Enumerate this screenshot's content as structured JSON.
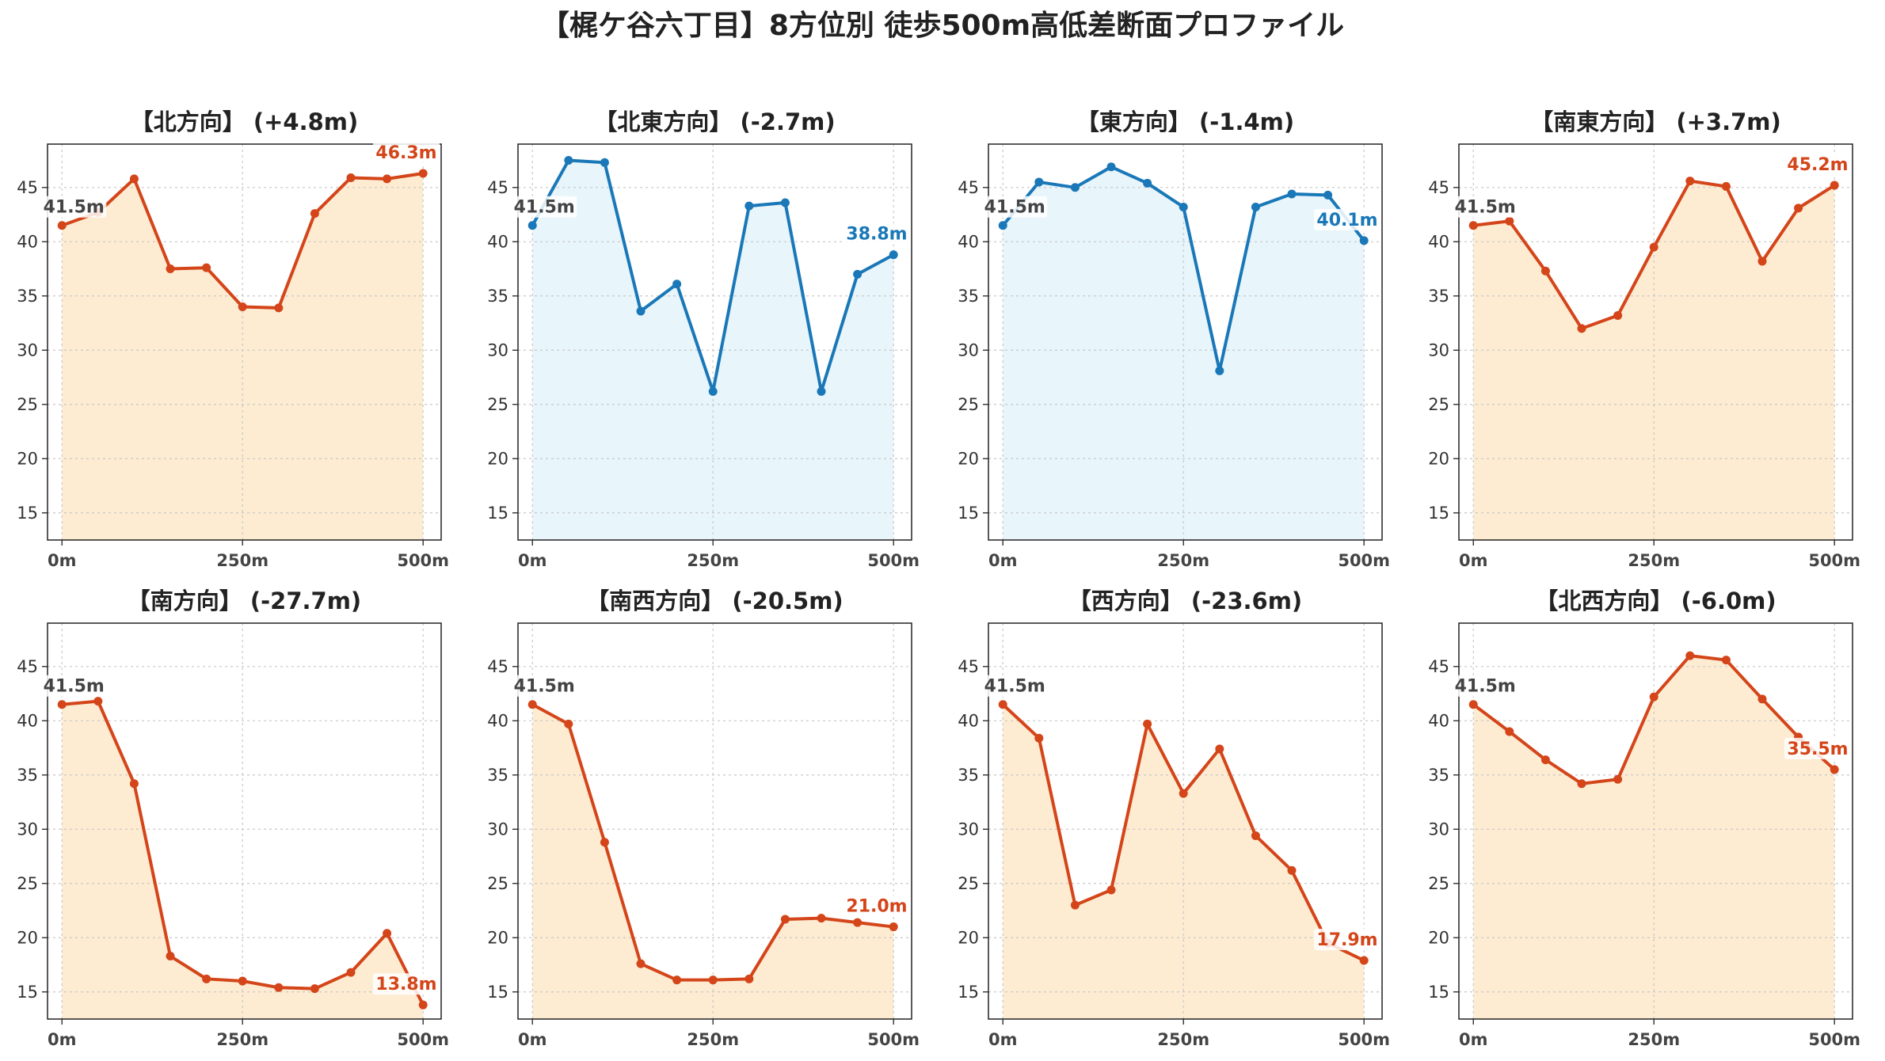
{
  "title": "【梶ケ谷六丁目】8方位別 徒歩500m高低差断面プロファイル",
  "colors": {
    "up_line": "#d4451a",
    "up_fill": "#fdecd2",
    "down_line": "#1a78b8",
    "down_fill": "#e8f5fb",
    "grid": "#c8c8c8",
    "label_gray": "#444444"
  },
  "chart_data": [
    {
      "type": "area",
      "title": "【北方向】 (+4.8m)",
      "color_scheme": "orange",
      "x": [
        0,
        50,
        100,
        150,
        200,
        250,
        300,
        350,
        400,
        450,
        500
      ],
      "values": [
        41.5,
        42.7,
        45.8,
        37.5,
        37.6,
        34.0,
        33.9,
        42.6,
        45.9,
        45.8,
        46.3
      ],
      "x_ticks": [
        "0m",
        "250m",
        "500m"
      ],
      "y_ticks": [
        15,
        20,
        25,
        30,
        35,
        40,
        45
      ],
      "ylim": [
        12.5,
        49
      ],
      "start_label": "41.5m",
      "end_label": "46.3m",
      "grid": true
    },
    {
      "type": "area",
      "title": "【北東方向】 (-2.7m)",
      "color_scheme": "blue",
      "x": [
        0,
        50,
        100,
        150,
        200,
        250,
        300,
        350,
        400,
        450,
        500
      ],
      "values": [
        41.5,
        47.5,
        47.3,
        33.6,
        36.1,
        26.2,
        43.3,
        43.6,
        26.2,
        37.0,
        38.8
      ],
      "x_ticks": [
        "0m",
        "250m",
        "500m"
      ],
      "y_ticks": [
        15,
        20,
        25,
        30,
        35,
        40,
        45
      ],
      "ylim": [
        12.5,
        49
      ],
      "start_label": "41.5m",
      "end_label": "38.8m",
      "grid": true
    },
    {
      "type": "area",
      "title": "【東方向】 (-1.4m)",
      "color_scheme": "blue",
      "x": [
        0,
        50,
        100,
        150,
        200,
        250,
        300,
        350,
        400,
        450,
        500
      ],
      "values": [
        41.5,
        45.5,
        45.0,
        46.9,
        45.4,
        43.2,
        28.1,
        43.2,
        44.4,
        44.3,
        40.1
      ],
      "x_ticks": [
        "0m",
        "250m",
        "500m"
      ],
      "y_ticks": [
        15,
        20,
        25,
        30,
        35,
        40,
        45
      ],
      "ylim": [
        12.5,
        49
      ],
      "start_label": "41.5m",
      "end_label": "40.1m",
      "grid": true
    },
    {
      "type": "area",
      "title": "【南東方向】 (+3.7m)",
      "color_scheme": "orange",
      "x": [
        0,
        50,
        100,
        150,
        200,
        250,
        300,
        350,
        400,
        450,
        500
      ],
      "values": [
        41.5,
        41.9,
        37.3,
        32.0,
        33.2,
        39.5,
        45.6,
        45.1,
        38.2,
        43.1,
        45.2
      ],
      "x_ticks": [
        "0m",
        "250m",
        "500m"
      ],
      "y_ticks": [
        15,
        20,
        25,
        30,
        35,
        40,
        45
      ],
      "ylim": [
        12.5,
        49
      ],
      "start_label": "41.5m",
      "end_label": "45.2m",
      "grid": true
    },
    {
      "type": "area",
      "title": "【南方向】 (-27.7m)",
      "color_scheme": "orange",
      "x": [
        0,
        50,
        100,
        150,
        200,
        250,
        300,
        350,
        400,
        450,
        500
      ],
      "values": [
        41.5,
        41.8,
        34.2,
        18.3,
        16.2,
        16.0,
        15.4,
        15.3,
        16.8,
        20.4,
        13.8
      ],
      "x_ticks": [
        "0m",
        "250m",
        "500m"
      ],
      "y_ticks": [
        15,
        20,
        25,
        30,
        35,
        40,
        45
      ],
      "ylim": [
        12.5,
        49
      ],
      "start_label": "41.5m",
      "end_label": "13.8m",
      "grid": true
    },
    {
      "type": "area",
      "title": "【南西方向】 (-20.5m)",
      "color_scheme": "orange",
      "x": [
        0,
        50,
        100,
        150,
        200,
        250,
        300,
        350,
        400,
        450,
        500
      ],
      "values": [
        41.5,
        39.7,
        28.8,
        17.6,
        16.1,
        16.1,
        16.2,
        21.7,
        21.8,
        21.4,
        21.0
      ],
      "x_ticks": [
        "0m",
        "250m",
        "500m"
      ],
      "y_ticks": [
        15,
        20,
        25,
        30,
        35,
        40,
        45
      ],
      "ylim": [
        12.5,
        49
      ],
      "start_label": "41.5m",
      "end_label": "21.0m",
      "grid": true
    },
    {
      "type": "area",
      "title": "【西方向】 (-23.6m)",
      "color_scheme": "orange",
      "x": [
        0,
        50,
        100,
        150,
        200,
        250,
        300,
        350,
        400,
        450,
        500
      ],
      "values": [
        41.5,
        38.4,
        23.0,
        24.4,
        39.7,
        33.3,
        37.4,
        29.4,
        26.2,
        19.5,
        17.9
      ],
      "x_ticks": [
        "0m",
        "250m",
        "500m"
      ],
      "y_ticks": [
        15,
        20,
        25,
        30,
        35,
        40,
        45
      ],
      "ylim": [
        12.5,
        49
      ],
      "start_label": "41.5m",
      "end_label": "17.9m",
      "grid": true
    },
    {
      "type": "area",
      "title": "【北西方向】 (-6.0m)",
      "color_scheme": "orange",
      "x": [
        0,
        50,
        100,
        150,
        200,
        250,
        300,
        350,
        400,
        450,
        500
      ],
      "values": [
        41.5,
        39.0,
        36.4,
        34.2,
        34.6,
        42.2,
        46.0,
        45.6,
        42.0,
        38.5,
        35.5
      ],
      "x_ticks": [
        "0m",
        "250m",
        "500m"
      ],
      "y_ticks": [
        15,
        20,
        25,
        30,
        35,
        40,
        45
      ],
      "ylim": [
        12.5,
        49
      ],
      "start_label": "41.5m",
      "end_label": "35.5m",
      "grid": true
    }
  ]
}
